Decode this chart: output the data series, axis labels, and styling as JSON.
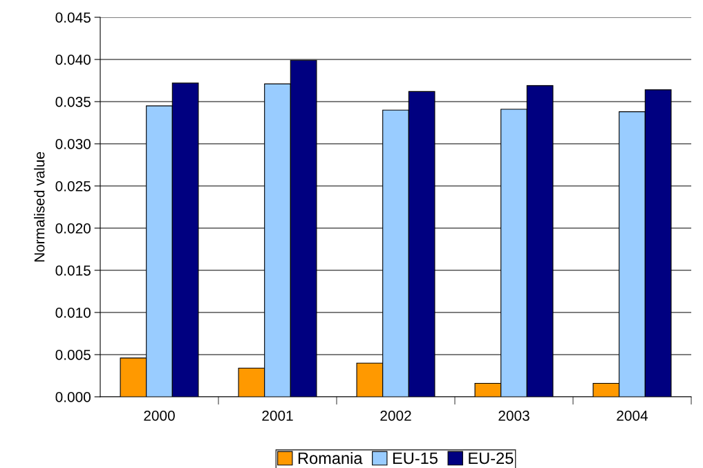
{
  "chart_data": {
    "type": "bar",
    "ylabel": "Normalised value",
    "categories": [
      "2000",
      "2001",
      "2002",
      "2003",
      "2004"
    ],
    "series": [
      {
        "name": "Romania",
        "color": "#ff9900",
        "values": [
          0.0046,
          0.0034,
          0.004,
          0.0016,
          0.0016
        ]
      },
      {
        "name": "EU-15",
        "color": "#99ccff",
        "values": [
          0.0345,
          0.0371,
          0.034,
          0.0341,
          0.0338
        ]
      },
      {
        "name": "EU-25",
        "color": "#000080",
        "values": [
          0.0372,
          0.0399,
          0.0362,
          0.0369,
          0.0364
        ]
      }
    ],
    "ylim": [
      0,
      0.045
    ],
    "yticks": [
      {
        "value": 0,
        "label": "0.000"
      },
      {
        "value": 0.005,
        "label": "0.005"
      },
      {
        "value": 0.01,
        "label": "0.010"
      },
      {
        "value": 0.015,
        "label": "0.015"
      },
      {
        "value": 0.02,
        "label": "0.020"
      },
      {
        "value": 0.025,
        "label": "0.025"
      },
      {
        "value": 0.03,
        "label": "0.030"
      },
      {
        "value": 0.035,
        "label": "0.035"
      },
      {
        "value": 0.04,
        "label": "0.040"
      },
      {
        "value": 0.045,
        "label": "0.045"
      }
    ],
    "grid": "y",
    "legend": "bottom"
  }
}
